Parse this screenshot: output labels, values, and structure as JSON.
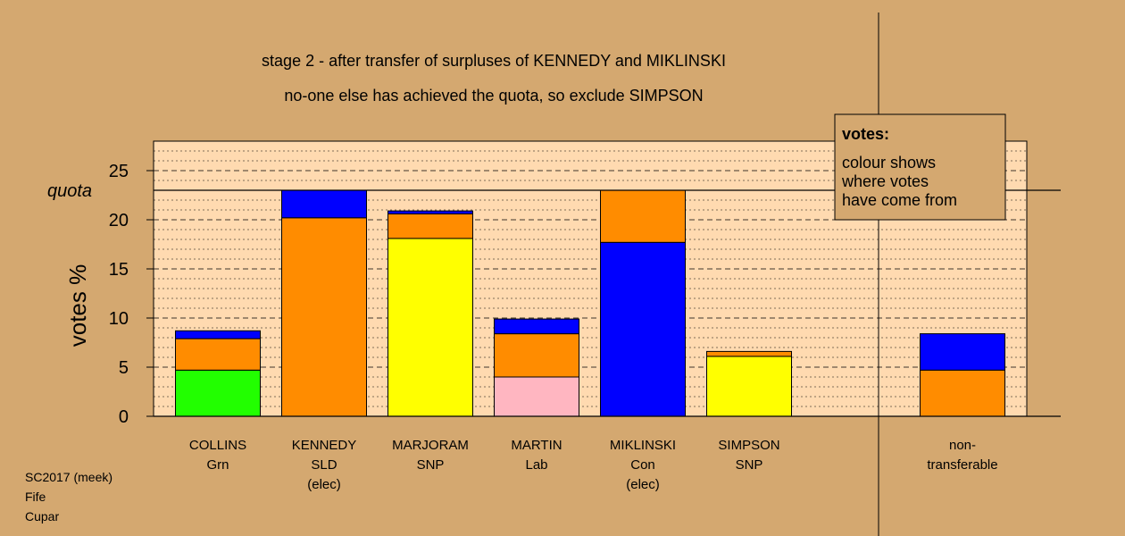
{
  "chart_data": {
    "type": "bar",
    "stacked": true,
    "title": "stage 2 - after transfer of surpluses of KENNEDY and MIKLINSKI",
    "subtitle": "no-one else has achieved the quota, so exclude SIMPSON",
    "ylabel": "votes %",
    "ylim": [
      0,
      28
    ],
    "yticks": [
      0,
      5,
      10,
      15,
      20,
      25
    ],
    "quota_value": 23,
    "quota_label": "quota",
    "categories": [
      {
        "name": "COLLINS",
        "party": "Grn",
        "note": ""
      },
      {
        "name": "KENNEDY",
        "party": "SLD",
        "note": "(elec)"
      },
      {
        "name": "MARJORAM",
        "party": "SNP",
        "note": ""
      },
      {
        "name": "MARTIN",
        "party": "Lab",
        "note": ""
      },
      {
        "name": "MIKLINSKI",
        "party": "Con",
        "note": "(elec)"
      },
      {
        "name": "SIMPSON",
        "party": "SNP",
        "note": ""
      }
    ],
    "nontransferable": {
      "label_line1": "non-",
      "label_line2": "transferable",
      "segments": [
        {
          "value": 4.7,
          "color": "#ff8c00"
        },
        {
          "value": 3.7,
          "color": "#0000ff"
        }
      ]
    },
    "bars": [
      {
        "segments": [
          {
            "value": 4.7,
            "color": "#22ff00"
          },
          {
            "value": 3.2,
            "color": "#ff8c00"
          },
          {
            "value": 0.8,
            "color": "#0000ff"
          }
        ]
      },
      {
        "segments": [
          {
            "value": 20.2,
            "color": "#ff8c00"
          },
          {
            "value": 2.8,
            "color": "#0000ff"
          }
        ]
      },
      {
        "segments": [
          {
            "value": 18.1,
            "color": "#ffff00"
          },
          {
            "value": 2.5,
            "color": "#ff8c00"
          },
          {
            "value": 0.3,
            "color": "#0000ff"
          }
        ]
      },
      {
        "segments": [
          {
            "value": 4.0,
            "color": "#ffb6c1"
          },
          {
            "value": 4.4,
            "color": "#ff8c00"
          },
          {
            "value": 1.5,
            "color": "#0000ff"
          }
        ]
      },
      {
        "segments": [
          {
            "value": 17.7,
            "color": "#0000ff"
          },
          {
            "value": 5.3,
            "color": "#ff8c00"
          }
        ]
      },
      {
        "segments": [
          {
            "value": 6.1,
            "color": "#ffff00"
          },
          {
            "value": 0.5,
            "color": "#ff8c00"
          }
        ]
      }
    ],
    "legend": {
      "title": "votes:",
      "lines": [
        "colour shows",
        "where votes",
        "have come from"
      ],
      "placement": "top-right"
    },
    "colors": {
      "background": "#d4a870",
      "plot_area": "#ffdab0"
    }
  },
  "footer": {
    "line1": "SC2017 (meek)",
    "line2": "Fife",
    "line3": "Cupar"
  }
}
